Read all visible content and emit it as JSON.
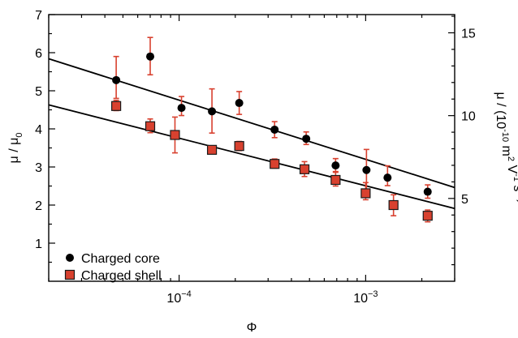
{
  "chart_data": {
    "type": "scatter",
    "title": "",
    "xlabel": "Φ",
    "xscale": "log",
    "xlim": [
      2e-05,
      0.003
    ],
    "xticks": [
      {
        "value": 0.0001,
        "base": "10",
        "exp": "−4"
      },
      {
        "value": 0.001,
        "base": "10",
        "exp": "−3"
      }
    ],
    "ylabel_left": {
      "base": "μ / μ",
      "sub": "0"
    },
    "ylim_left": [
      0,
      7
    ],
    "yticks_left": [
      "1",
      "2",
      "3",
      "4",
      "5",
      "6",
      "7"
    ],
    "ylabel_right": "μ / (10-10 m2 V-1 s-1)",
    "ylabel_right_parts": [
      {
        "t": "μ / (10",
        "s": ""
      },
      {
        "t": "-10",
        "s": "sup"
      },
      {
        "t": " m",
        "s": ""
      },
      {
        "t": "2",
        "s": "sup"
      },
      {
        "t": " V",
        "s": ""
      },
      {
        "t": "-1",
        "s": "sup"
      },
      {
        "t": " s",
        "s": ""
      },
      {
        "t": "-1",
        "s": "sup"
      },
      {
        "t": ")",
        "s": ""
      }
    ],
    "ylim_right": [
      0,
      16.1
    ],
    "yticks_right": [
      "5",
      "10",
      "15"
    ],
    "grid": false,
    "legend_position": "bottom-left",
    "colors": {
      "core_marker": "#000000",
      "shell_fill": "#d8412f",
      "shell_edge": "#1a1a1a",
      "error_bars": "#d8412f",
      "fit_lines": "#000000"
    },
    "series": [
      {
        "name": "Charged core",
        "marker": "circle",
        "points": [
          {
            "x": 4.6e-05,
            "y": 5.28,
            "yerr_low": 0.48,
            "yerr_high": 0.62
          },
          {
            "x": 7e-05,
            "y": 5.9,
            "yerr_low": 0.48,
            "yerr_high": 0.5
          },
          {
            "x": 0.000103,
            "y": 4.55,
            "yerr_low": 0.2,
            "yerr_high": 0.3
          },
          {
            "x": 0.00015,
            "y": 4.46,
            "yerr_low": 0.57,
            "yerr_high": 0.59
          },
          {
            "x": 0.00021,
            "y": 4.68,
            "yerr_low": 0.3,
            "yerr_high": 0.3
          },
          {
            "x": 0.000325,
            "y": 3.98,
            "yerr_low": 0.21,
            "yerr_high": 0.21
          },
          {
            "x": 0.00048,
            "y": 3.74,
            "yerr_low": 0.15,
            "yerr_high": 0.18
          },
          {
            "x": 0.00069,
            "y": 3.04,
            "yerr_low": 0.16,
            "yerr_high": 0.18
          },
          {
            "x": 0.00101,
            "y": 2.92,
            "yerr_low": 0.59,
            "yerr_high": 0.54
          },
          {
            "x": 0.00131,
            "y": 2.72,
            "yerr_low": 0.21,
            "yerr_high": 0.31
          },
          {
            "x": 0.00215,
            "y": 2.35,
            "yerr_low": 0.17,
            "yerr_high": 0.18
          }
        ]
      },
      {
        "name": "Charged shell",
        "marker": "square",
        "points": [
          {
            "x": 4.6e-05,
            "y": 4.6,
            "yerr_low": 0.12,
            "yerr_high": 0.15
          },
          {
            "x": 7e-05,
            "y": 4.07,
            "yerr_low": 0.17,
            "yerr_high": 0.19
          },
          {
            "x": 9.5e-05,
            "y": 3.84,
            "yerr_low": 0.47,
            "yerr_high": 0.47
          },
          {
            "x": 0.00015,
            "y": 3.45,
            "yerr_low": 0.08,
            "yerr_high": 0.08
          },
          {
            "x": 0.00021,
            "y": 3.55,
            "yerr_low": 0.12,
            "yerr_high": 0.12
          },
          {
            "x": 0.000325,
            "y": 3.08,
            "yerr_low": 0.11,
            "yerr_high": 0.13
          },
          {
            "x": 0.00047,
            "y": 2.94,
            "yerr_low": 0.19,
            "yerr_high": 0.2
          },
          {
            "x": 0.00069,
            "y": 2.66,
            "yerr_low": 0.16,
            "yerr_high": 0.2
          },
          {
            "x": 0.001,
            "y": 2.31,
            "yerr_low": 0.17,
            "yerr_high": 0.28
          },
          {
            "x": 0.00141,
            "y": 2.0,
            "yerr_low": 0.28,
            "yerr_high": 0.27
          },
          {
            "x": 0.00215,
            "y": 1.72,
            "yerr_low": 0.16,
            "yerr_high": 0.15
          }
        ]
      }
    ],
    "fit_lines": [
      {
        "series": "Charged core",
        "x": [
          2e-05,
          0.003
        ],
        "y": [
          5.84,
          2.46
        ]
      },
      {
        "series": "Charged shell",
        "x": [
          2e-05,
          0.003
        ],
        "y": [
          4.63,
          1.91
        ]
      }
    ]
  }
}
